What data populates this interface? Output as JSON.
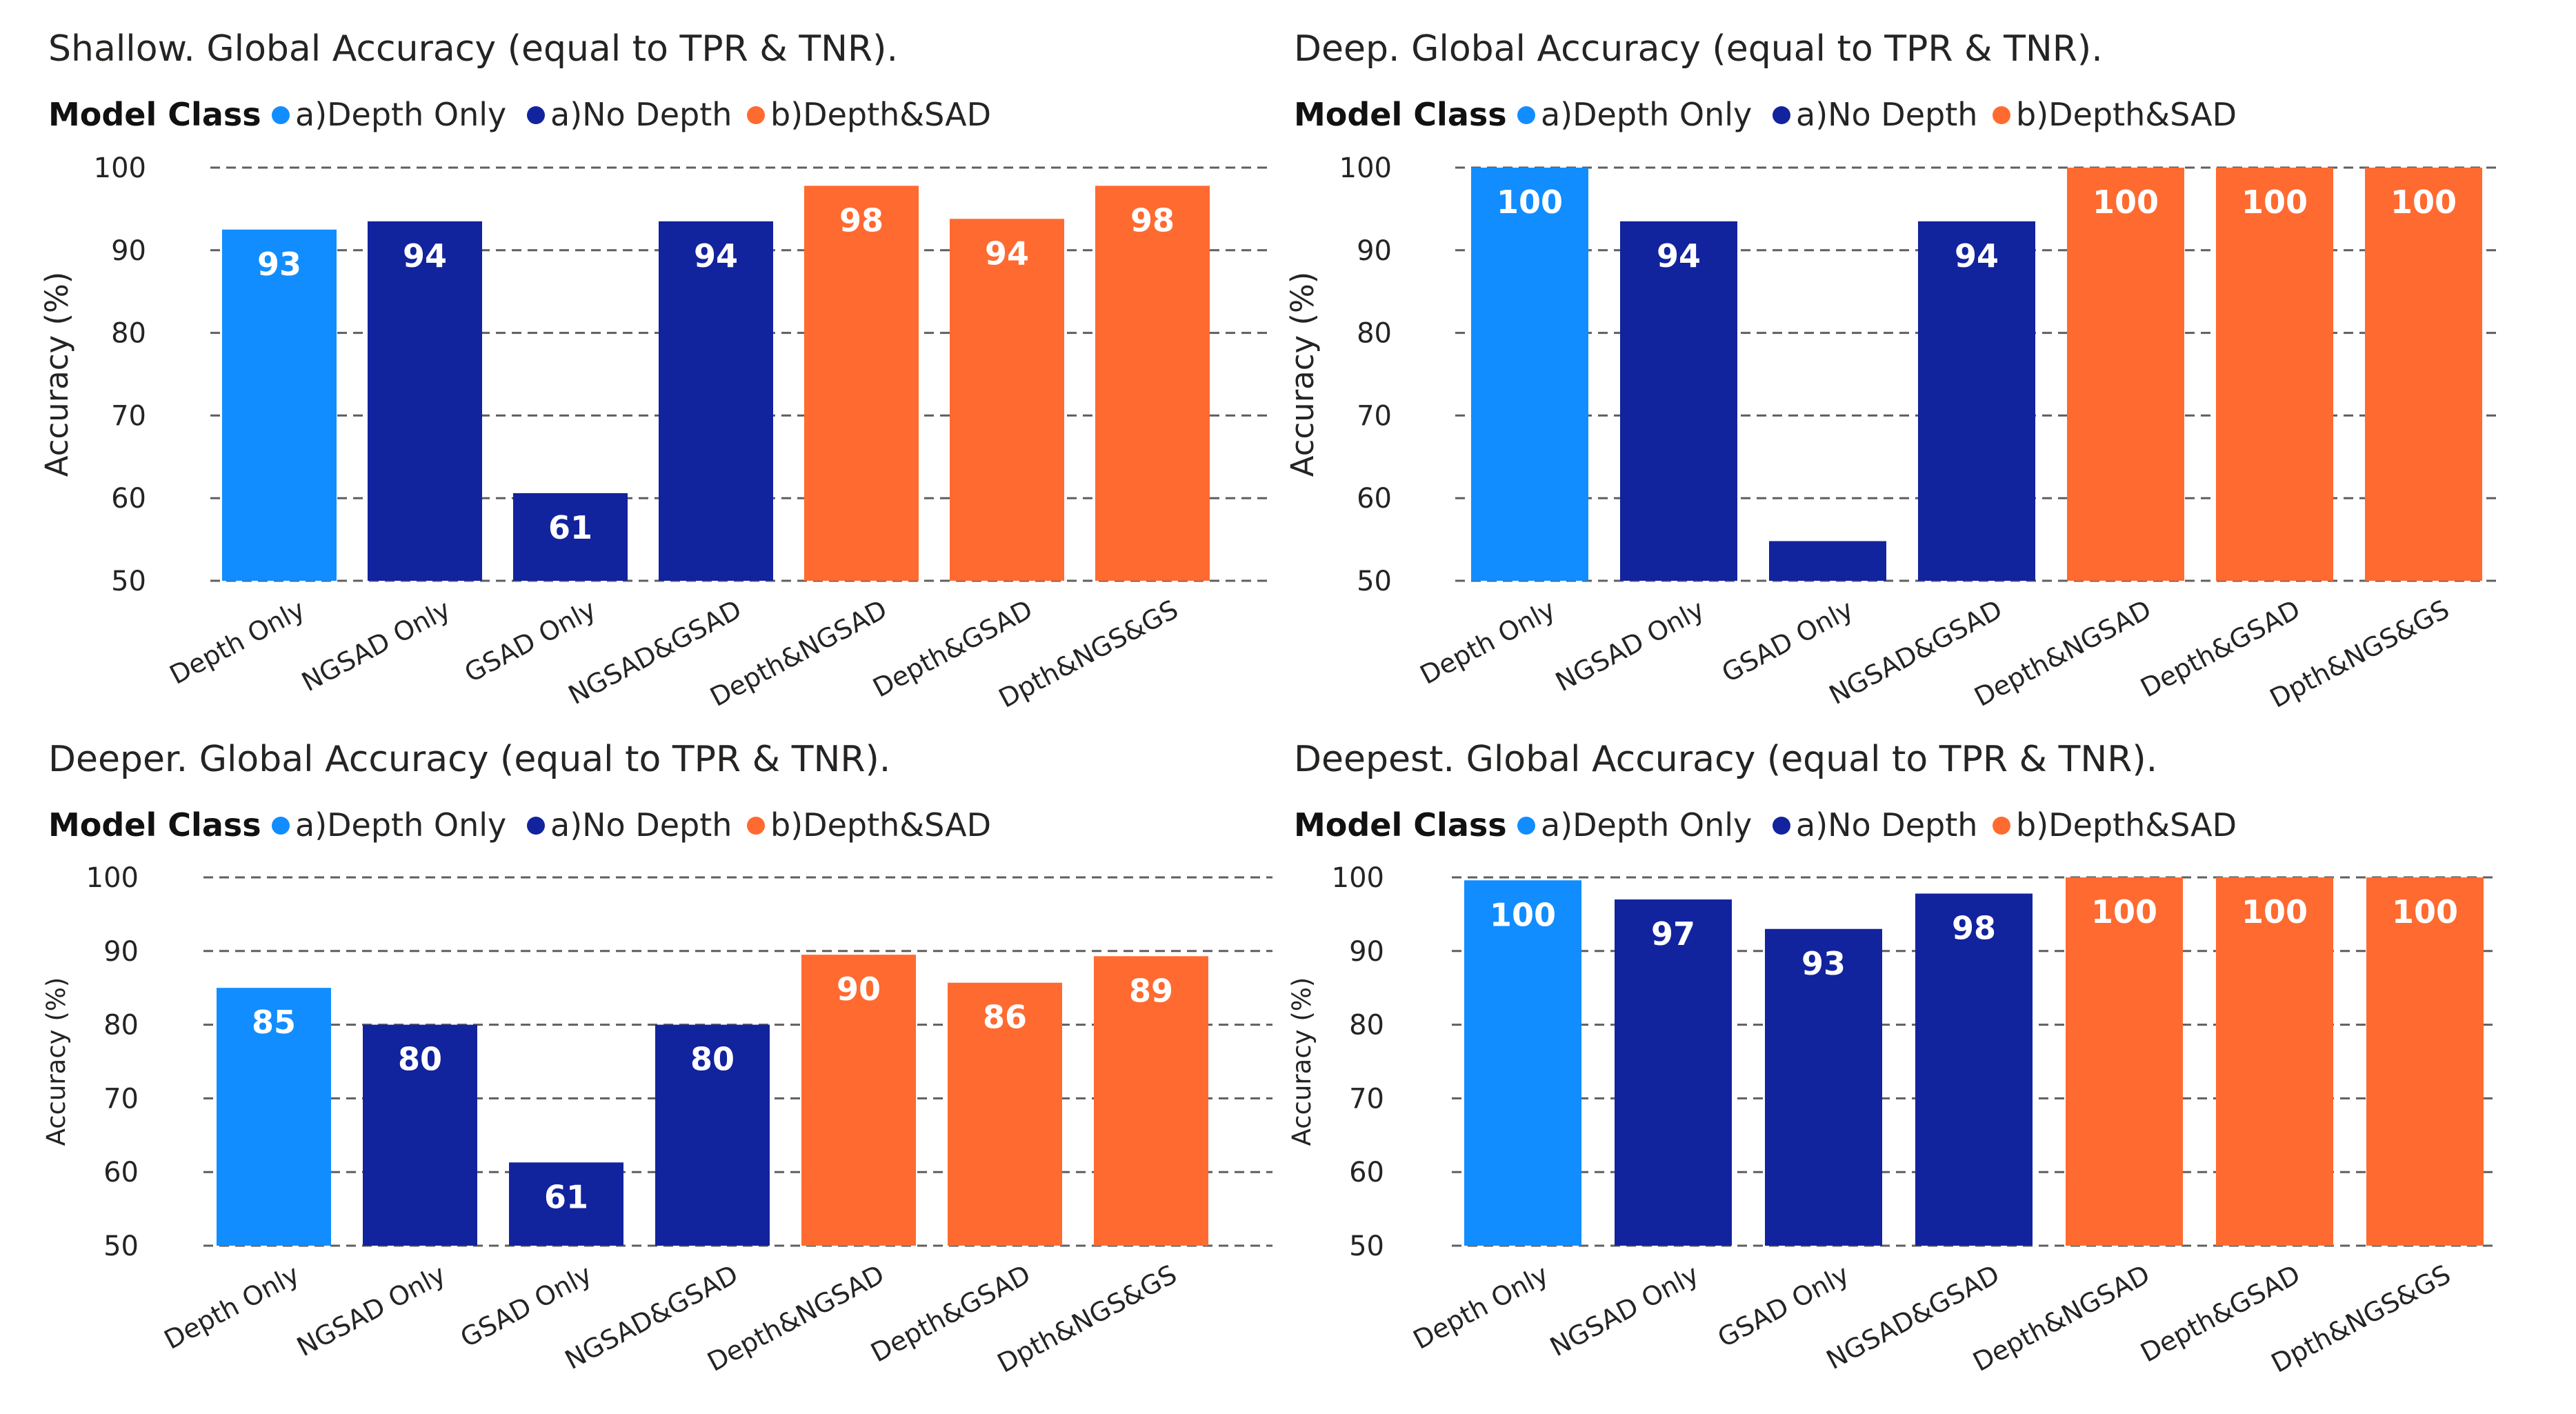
{
  "legend": {
    "label": "Model Class",
    "entries": [
      {
        "name": "a)Depth Only",
        "color": "#118DFF"
      },
      {
        "name": "a)No Depth",
        "color": "#12239E"
      },
      {
        "name": "b)Depth&SAD",
        "color": "#FF6A30"
      }
    ]
  },
  "chart_data": [
    {
      "type": "bar",
      "title": "Shallow. Global Accuracy (equal to TPR & TNR).",
      "ylabel": "Accuracy (%)",
      "ylim": [
        50,
        100
      ],
      "yticks": [
        50,
        60,
        70,
        80,
        90,
        100
      ],
      "categories": [
        "Depth Only",
        "NGSAD Only",
        "GSAD Only",
        "NGSAD&GSAD",
        "Depth&NGSAD",
        "Depth&GSAD",
        "Dpth&NGS&GS"
      ],
      "classes": [
        0,
        1,
        1,
        1,
        2,
        2,
        2
      ],
      "values": [
        92.5,
        93.5,
        60.6,
        93.5,
        97.8,
        93.8,
        97.8
      ],
      "data_labels": [
        "93",
        "94",
        "61",
        "94",
        "98",
        "94",
        "98"
      ]
    },
    {
      "type": "bar",
      "title": "Deep. Global Accuracy (equal to TPR & TNR).",
      "ylabel": "Accuracy (%)",
      "ylim": [
        50,
        100
      ],
      "yticks": [
        50,
        60,
        70,
        80,
        90,
        100
      ],
      "categories": [
        "Depth Only",
        "NGSAD Only",
        "GSAD Only",
        "NGSAD&GSAD",
        "Depth&NGSAD",
        "Depth&GSAD",
        "Dpth&NGS&GS"
      ],
      "classes": [
        0,
        1,
        1,
        1,
        2,
        2,
        2
      ],
      "values": [
        100,
        93.5,
        54.8,
        93.5,
        100,
        100,
        100
      ],
      "data_labels": [
        "100",
        "94",
        "",
        "94",
        "100",
        "100",
        "100"
      ]
    },
    {
      "type": "bar",
      "title": "Deeper. Global Accuracy (equal to TPR & TNR).",
      "ylabel": "Accuracy (%)",
      "ylim": [
        50,
        100
      ],
      "yticks": [
        50,
        60,
        70,
        80,
        90,
        100
      ],
      "categories": [
        "Depth Only",
        "NGSAD Only",
        "GSAD Only",
        "NGSAD&GSAD",
        "Depth&NGSAD",
        "Depth&GSAD",
        "Dpth&NGS&GS"
      ],
      "classes": [
        0,
        1,
        1,
        1,
        2,
        2,
        2
      ],
      "values": [
        85,
        80,
        61.3,
        80,
        89.5,
        85.7,
        89.3
      ],
      "data_labels": [
        "85",
        "80",
        "61",
        "80",
        "90",
        "86",
        "89"
      ]
    },
    {
      "type": "bar",
      "title": "Deepest. Global Accuracy (equal to TPR & TNR).",
      "ylabel": "Accuracy (%)",
      "ylim": [
        50,
        100
      ],
      "yticks": [
        50,
        60,
        70,
        80,
        90,
        100
      ],
      "categories": [
        "Depth Only",
        "NGSAD Only",
        "GSAD Only",
        "NGSAD&GSAD",
        "Depth&NGSAD",
        "Depth&GSAD",
        "Dpth&NGS&GS"
      ],
      "classes": [
        0,
        1,
        1,
        1,
        2,
        2,
        2
      ],
      "values": [
        99.6,
        97,
        93,
        97.8,
        100,
        100,
        100
      ],
      "data_labels": [
        "100",
        "97",
        "93",
        "98",
        "100",
        "100",
        "100"
      ]
    }
  ]
}
